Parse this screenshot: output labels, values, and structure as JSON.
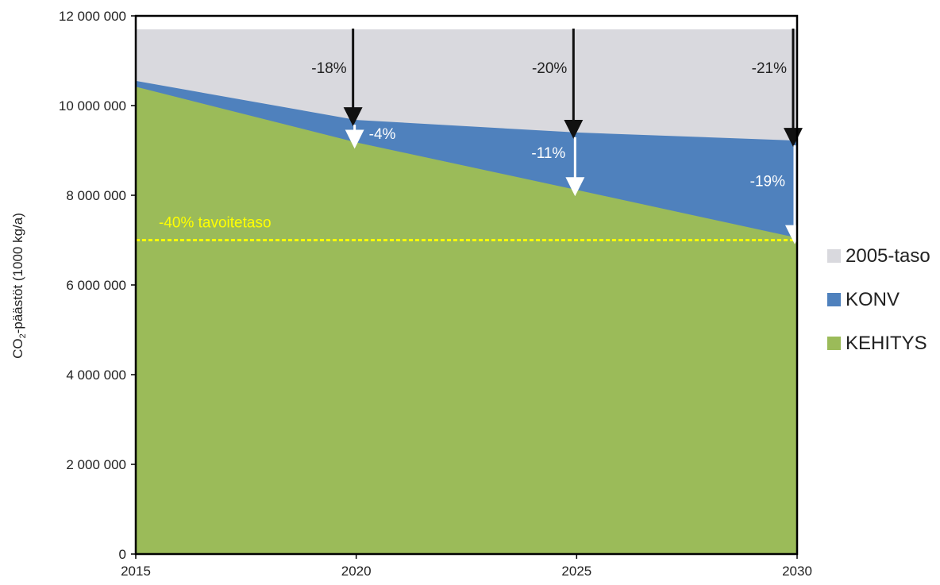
{
  "chart_data": {
    "type": "area",
    "x": [
      2015,
      2020,
      2025,
      2030
    ],
    "x_ticks": [
      "2015",
      "2020",
      "2025",
      "2030"
    ],
    "y_ticks": [
      "0",
      "2 000 000",
      "4 000 000",
      "6 000 000",
      "8 000 000",
      "10 000 000",
      "12 000 000"
    ],
    "ylim": [
      0,
      12000000
    ],
    "xlim": [
      2015,
      2030
    ],
    "ylabel_main": "CO",
    "ylabel_sub": "2",
    "ylabel_rest": "-päästöt (1000 kg/a)",
    "series": [
      {
        "name": "2005-taso",
        "color": "#d9d9de",
        "values": [
          11700000,
          11700000,
          11700000,
          11700000
        ]
      },
      {
        "name": "KONV",
        "color": "#4f81bd",
        "values": [
          10550000,
          9680000,
          9400000,
          9220000
        ]
      },
      {
        "name": "KEHITYS",
        "color": "#9bbb59",
        "values": [
          10420000,
          9180000,
          8120000,
          7050000
        ]
      }
    ],
    "target_line": {
      "label": "-40% tavoitetaso",
      "value": 7000000,
      "color": "#ffff00"
    },
    "annotations_reduction_2005": [
      {
        "x": 2020,
        "label": "-18%"
      },
      {
        "x": 2025,
        "label": "-20%"
      },
      {
        "x": 2030,
        "label": "-21%"
      }
    ],
    "annotations_reduction_konv": [
      {
        "x": 2020,
        "label": "-4%"
      },
      {
        "x": 2025,
        "label": "-11%"
      },
      {
        "x": 2030,
        "label": "-19%"
      }
    ],
    "legend_position": "right",
    "grid": false
  }
}
